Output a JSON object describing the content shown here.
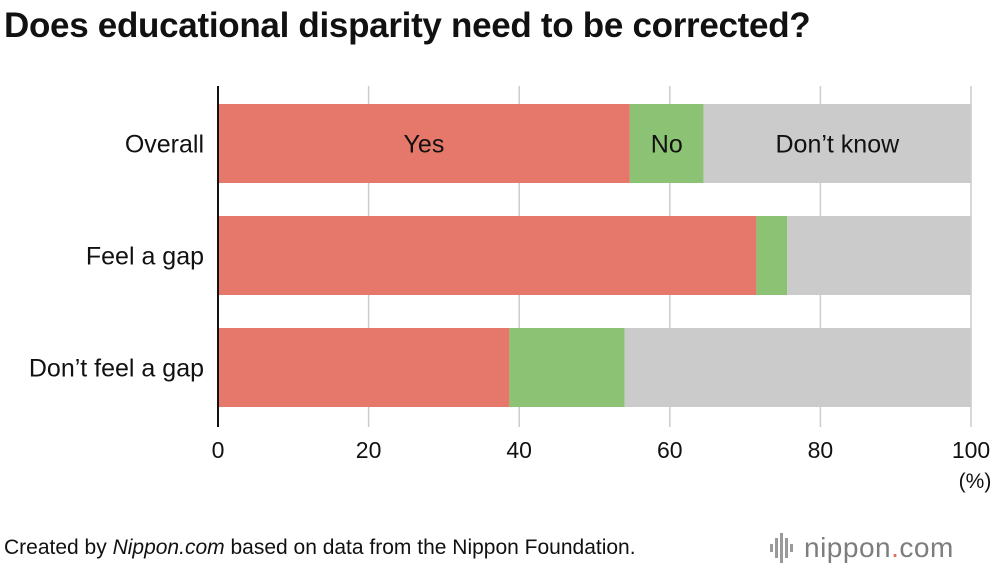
{
  "title": "Does educational disparity need to be corrected?",
  "chart_data": {
    "type": "bar",
    "orientation": "horizontal",
    "stacked": true,
    "categories": [
      "Overall",
      "Feel a gap",
      "Don’t feel a gap"
    ],
    "series": [
      {
        "name": "Yes",
        "color": "#e5786a",
        "values": [
          54.7,
          71.5,
          38.7
        ]
      },
      {
        "name": "No",
        "color": "#8bc273",
        "values": [
          9.8,
          4.1,
          15.3
        ]
      },
      {
        "name": "Don’t know",
        "color": "#cbcbcb",
        "values": [
          35.5,
          24.4,
          46.0
        ]
      }
    ],
    "xlim": [
      0,
      100
    ],
    "xticks": [
      "0",
      "20",
      "40",
      "60",
      "80",
      "100"
    ],
    "xtick_values": [
      0,
      20,
      40,
      60,
      80,
      100
    ],
    "xunit": "(%)",
    "grid": true,
    "legend": "inline labels on first bar"
  },
  "footer": {
    "prefix": "Created by ",
    "source_name": "Nippon.com",
    "suffix": " based on data from the Nippon Foundation."
  },
  "logo": {
    "word": "nippon",
    "dot": ".",
    "tld": "com",
    "accent": "#e06c5c"
  }
}
